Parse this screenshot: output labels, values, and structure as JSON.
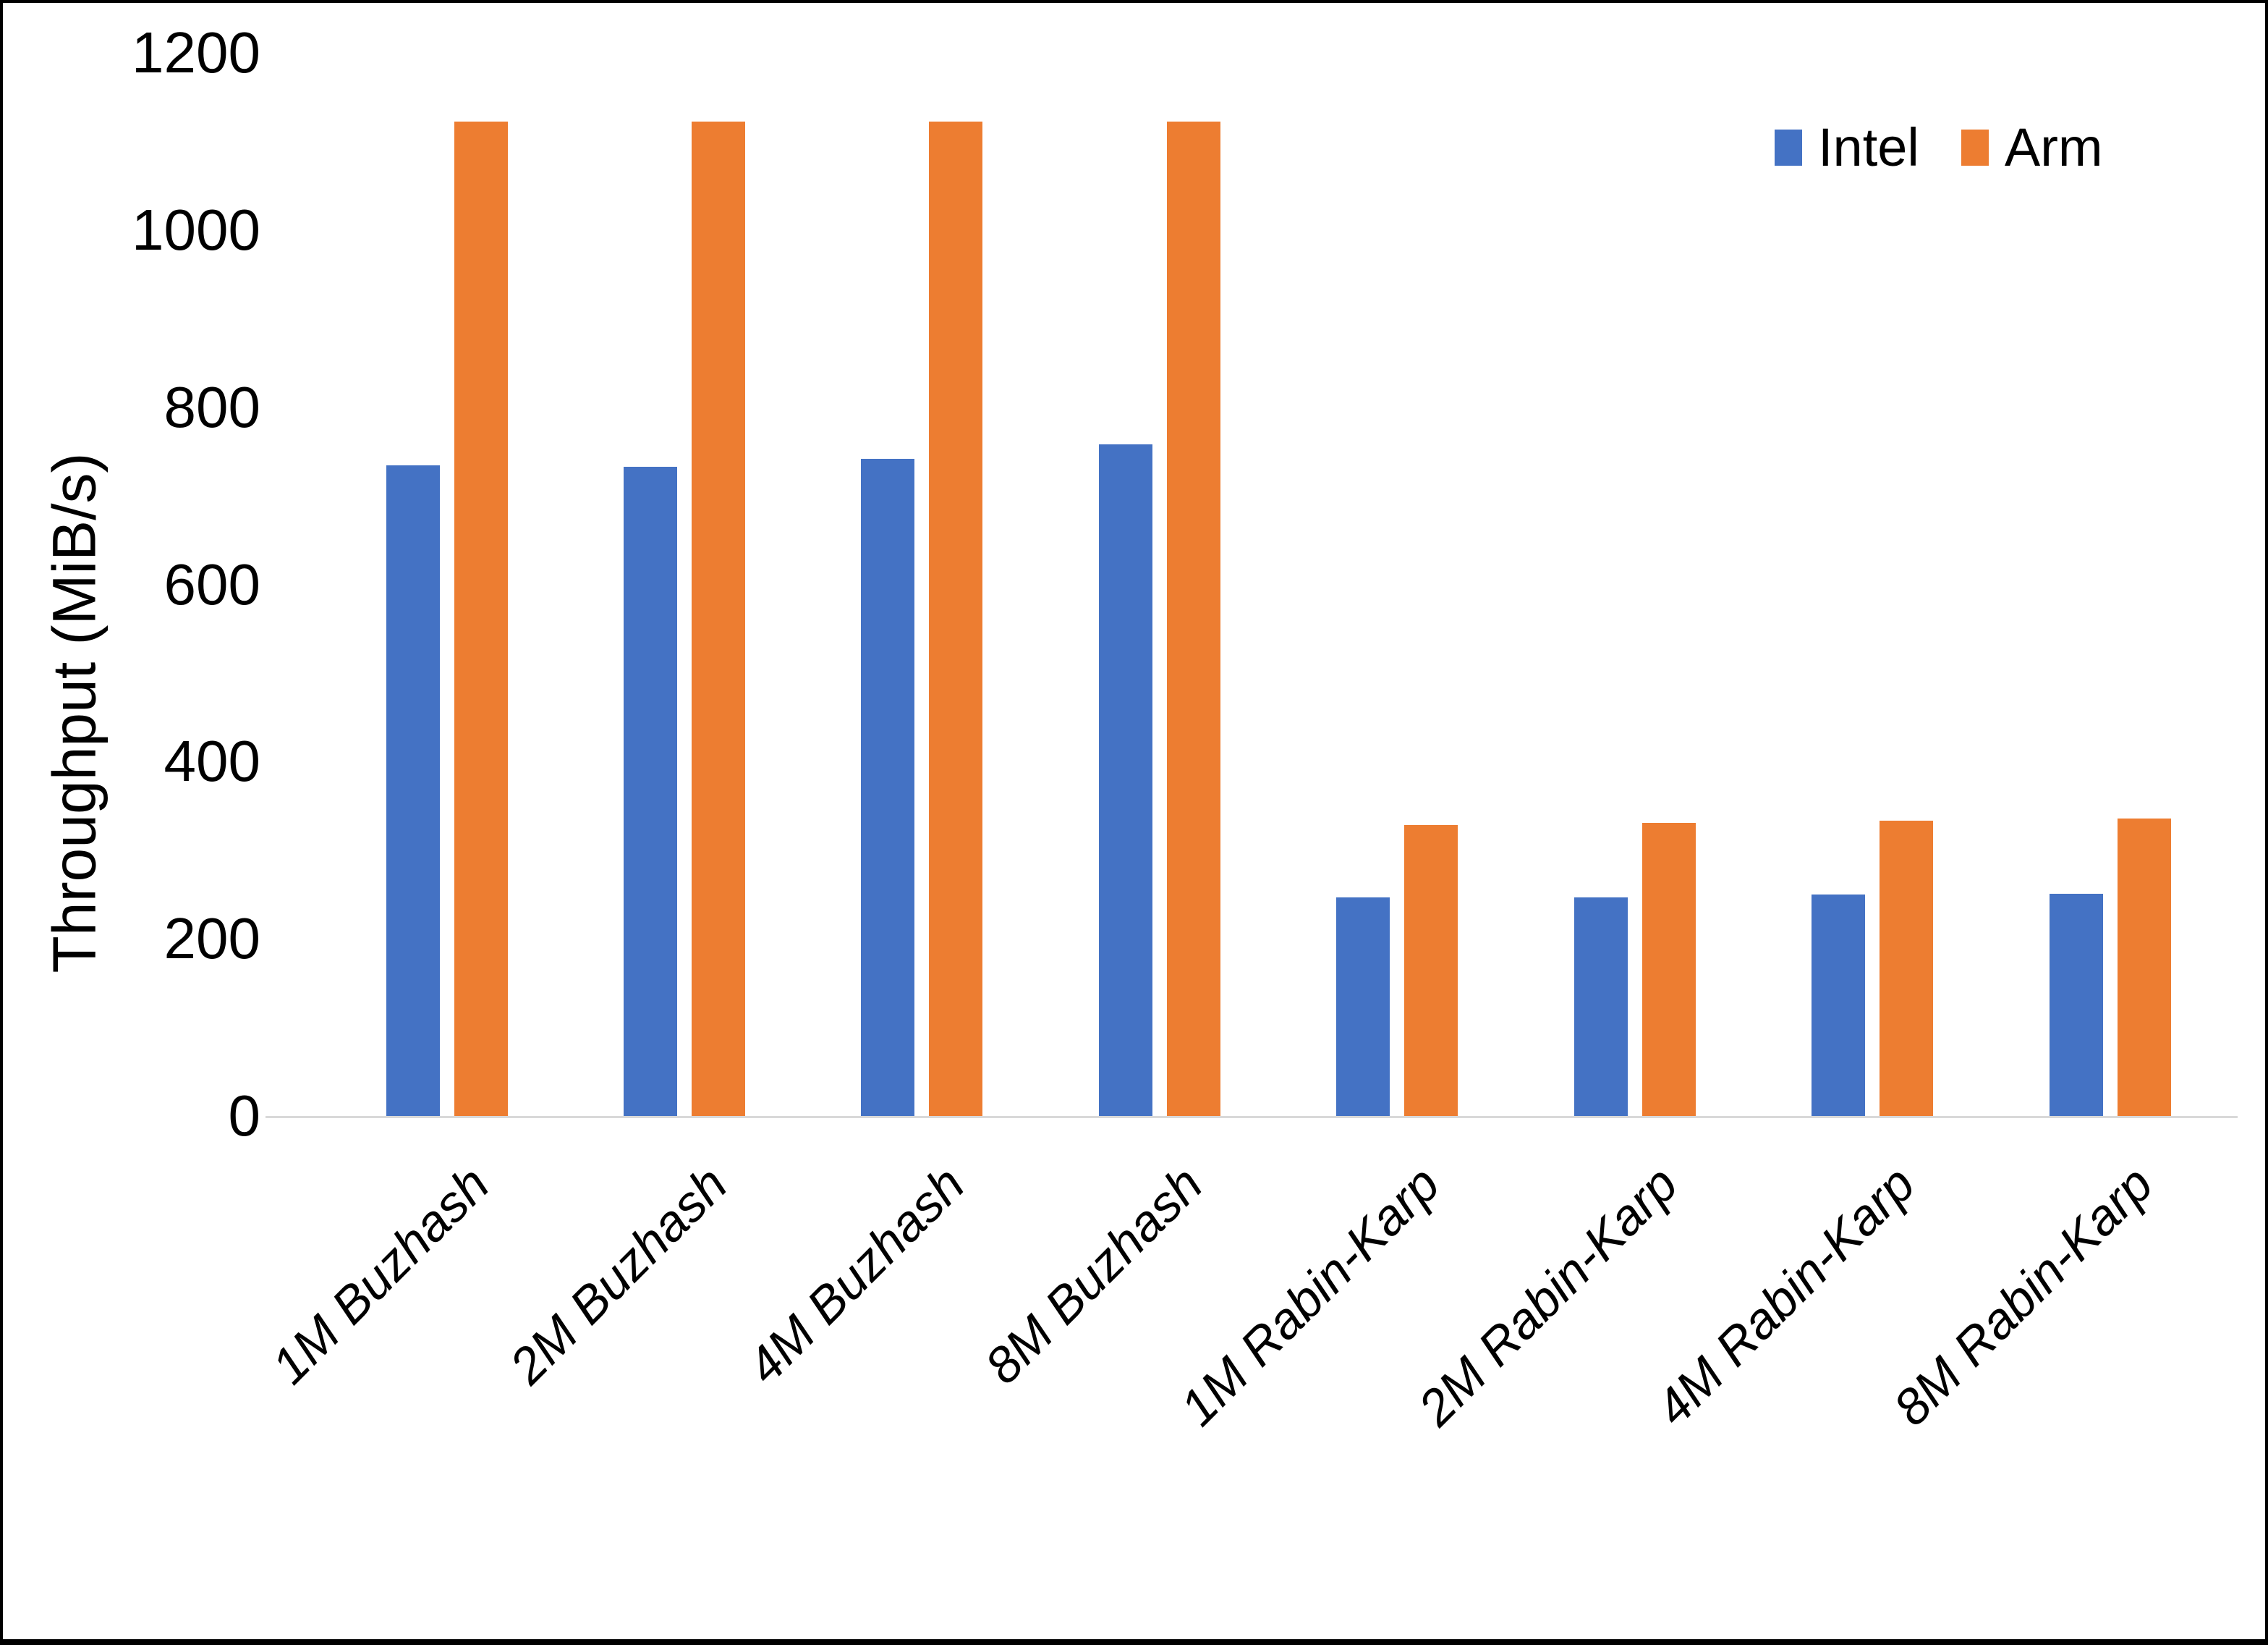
{
  "chart_data": {
    "type": "bar",
    "title": "",
    "xlabel": "",
    "ylabel": "Throughput (MiB/s)",
    "ylim": [
      0,
      1200
    ],
    "yticks": [
      0,
      200,
      400,
      600,
      800,
      1000,
      1200
    ],
    "grid": false,
    "legend_position": "top-right",
    "categories": [
      "1M Buzhash",
      "2M Buzhash",
      "4M Buzhash",
      "8M Buzhash",
      "1M Rabin-Karp",
      "2M Rabin-Karp",
      "4M Rabin-Karp",
      "8M Rabin-Karp"
    ],
    "series": [
      {
        "name": "Intel",
        "color": "#4472C4",
        "values": [
          734,
          733,
          742,
          758,
          247,
          247,
          250,
          251
        ]
      },
      {
        "name": "Arm",
        "color": "#ED7D31",
        "values": [
          1122,
          1122,
          1122,
          1122,
          328,
          331,
          333,
          336
        ]
      }
    ]
  },
  "colors": {
    "background": "#FFFFFF",
    "axis_line": "#D9D9D9",
    "text": "#000000",
    "frame": "#000000",
    "intel": "#4472C4",
    "arm": "#ED7D31"
  }
}
